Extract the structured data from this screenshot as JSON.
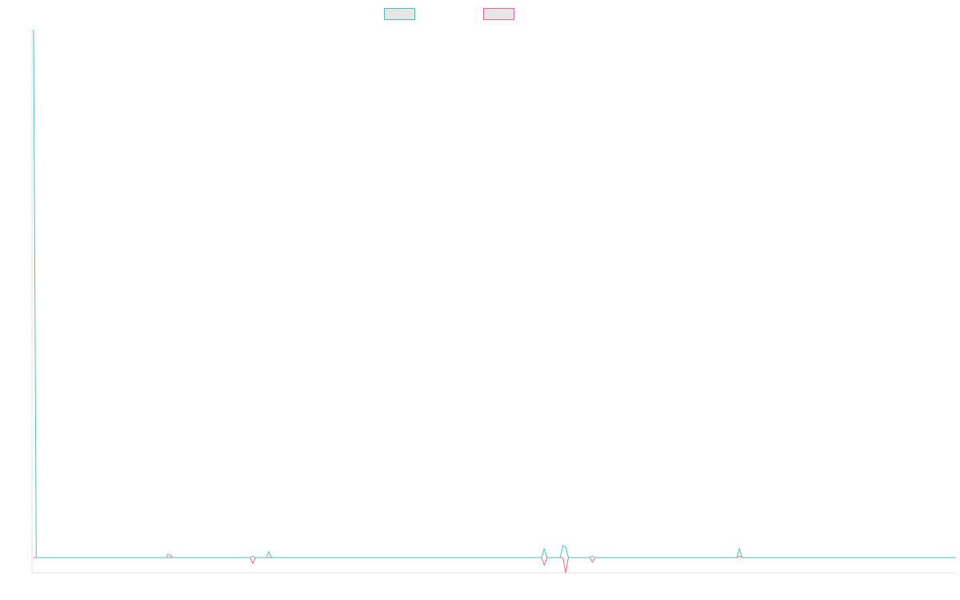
{
  "chart_data": {
    "type": "line",
    "title": "",
    "xlabel": "",
    "ylabel": "",
    "legend_position": "top-center",
    "grid": false,
    "colors": {
      "series_1": "#4bc0c0",
      "series_2": "#ff6384",
      "axis": "#e0e0e0",
      "legend_fill": "#e6e6e6"
    },
    "x_count": 346,
    "ylim": [
      -1,
      35
    ],
    "series": [
      {
        "name": "",
        "color_key": "series_1",
        "points": [
          [
            0,
            35
          ],
          [
            1,
            0
          ],
          [
            50,
            0
          ],
          [
            50,
            0.2
          ],
          [
            51,
            0.2
          ],
          [
            52,
            0
          ],
          [
            81,
            0
          ],
          [
            82,
            0.1
          ],
          [
            83,
            0
          ],
          [
            87,
            0
          ],
          [
            88,
            0.4
          ],
          [
            89,
            0
          ],
          [
            190,
            0
          ],
          [
            191,
            0.6
          ],
          [
            192,
            0
          ],
          [
            197,
            0
          ],
          [
            198,
            0.8
          ],
          [
            199,
            0.7
          ],
          [
            200,
            0
          ],
          [
            208,
            0
          ],
          [
            209,
            0.1
          ],
          [
            210,
            0
          ],
          [
            263,
            0
          ],
          [
            264,
            0.6
          ],
          [
            265,
            0
          ],
          [
            345,
            0
          ]
        ]
      },
      {
        "name": "",
        "color_key": "series_2",
        "points": [
          [
            0,
            0
          ],
          [
            81,
            0
          ],
          [
            82,
            -0.4
          ],
          [
            83,
            0
          ],
          [
            190,
            0
          ],
          [
            191,
            -0.5
          ],
          [
            192,
            0
          ],
          [
            198,
            0
          ],
          [
            199,
            -1
          ],
          [
            200,
            0
          ],
          [
            208,
            0
          ],
          [
            209,
            -0.3
          ],
          [
            210,
            0
          ],
          [
            263,
            0
          ],
          [
            264,
            0.1
          ],
          [
            265,
            0
          ],
          [
            345,
            0
          ]
        ]
      }
    ]
  }
}
